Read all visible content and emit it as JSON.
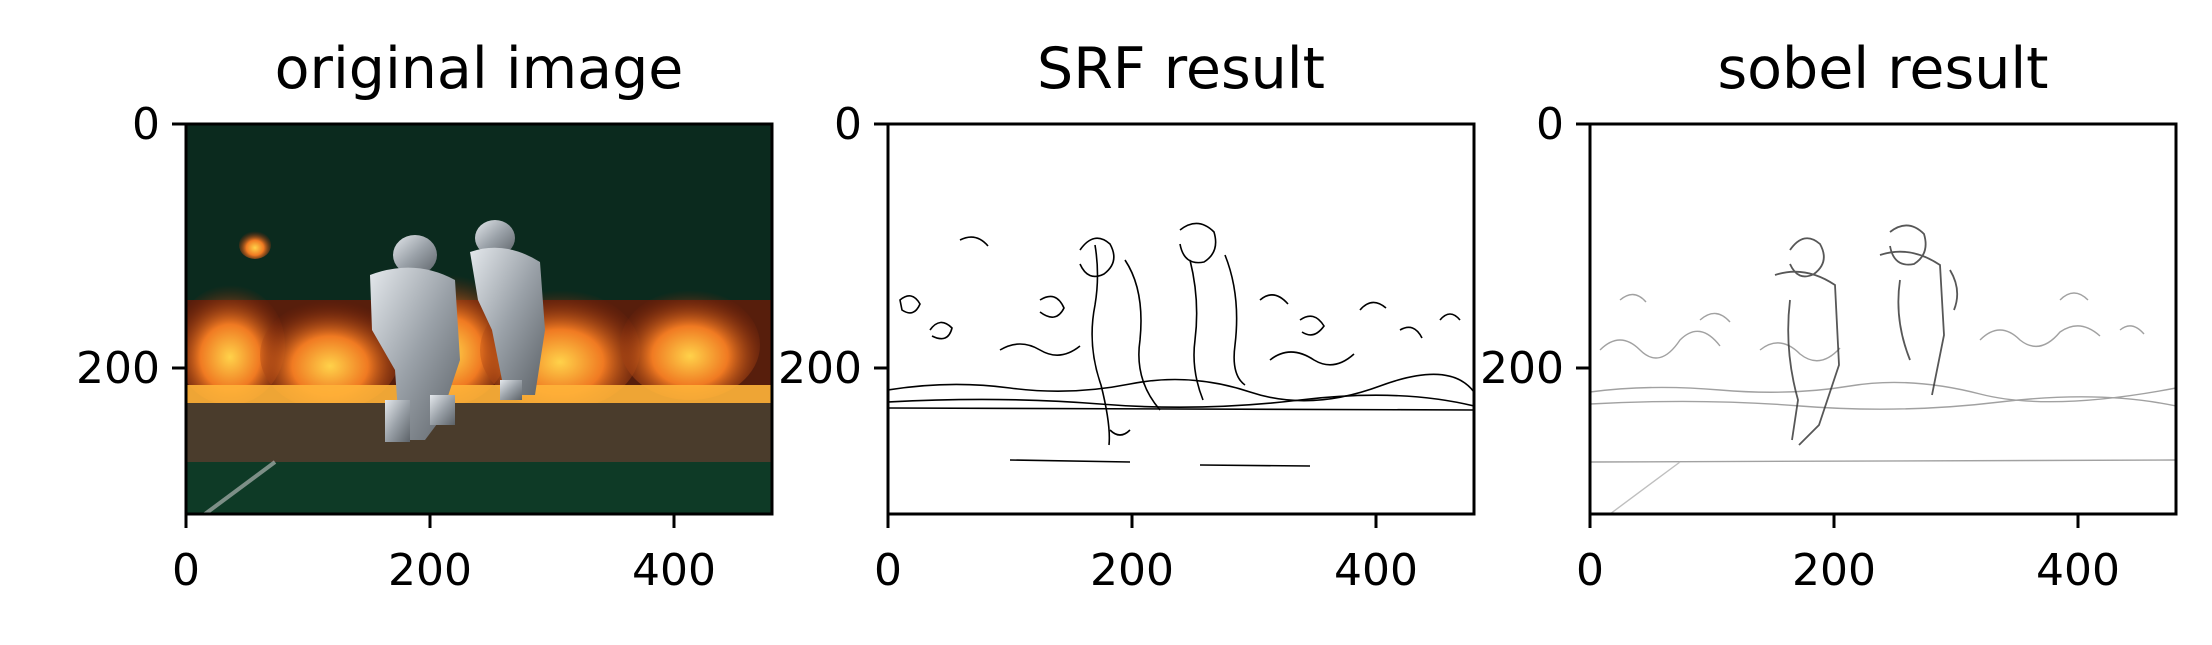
{
  "panels": [
    {
      "title": "original image",
      "image": "fire-scene-photo",
      "x_ticks": [
        "0",
        "200",
        "400"
      ],
      "y_ticks": [
        "0",
        "200"
      ]
    },
    {
      "title": "SRF result",
      "image": "binary-edge-map",
      "x_ticks": [
        "0",
        "200",
        "400"
      ],
      "y_ticks": [
        "0",
        "200"
      ]
    },
    {
      "title": "sobel result",
      "image": "grayscale-gradient-map",
      "x_ticks": [
        "0",
        "200",
        "400"
      ],
      "y_ticks": [
        "0",
        "200"
      ]
    }
  ],
  "colors": {
    "background": "#ffffff",
    "axes": "#000000",
    "photo_sky": "#0b2a1e",
    "flame": "#e8601a",
    "flame_core": "#ffd24a",
    "suit": "#b8bec4",
    "ground": "#4a3c2c",
    "floor": "#0e3a26"
  }
}
